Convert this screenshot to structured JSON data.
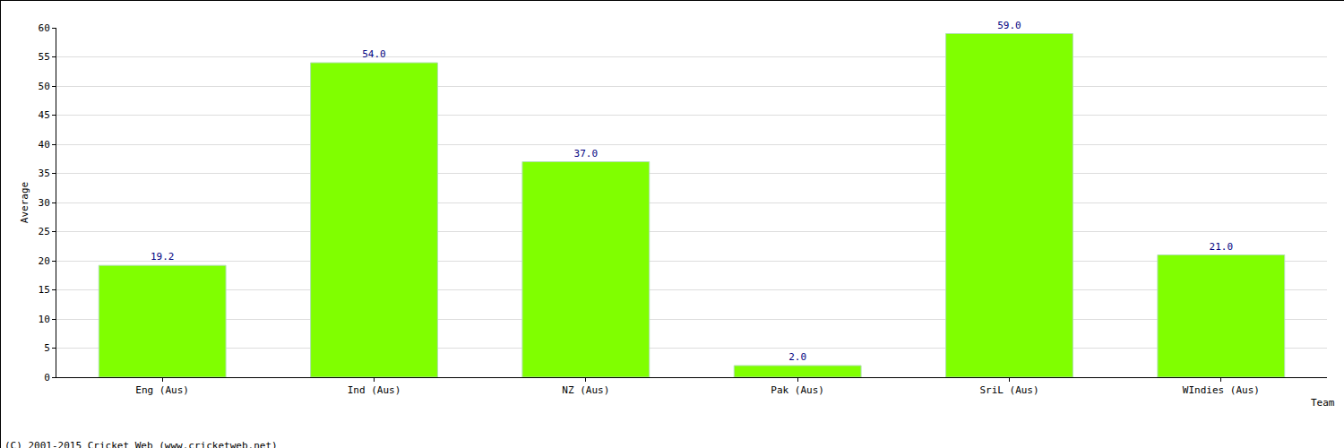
{
  "chart_data": {
    "type": "bar",
    "categories": [
      "Eng (Aus)",
      "Ind (Aus)",
      "NZ (Aus)",
      "Pak (Aus)",
      "SriL (Aus)",
      "WIndies (Aus)"
    ],
    "values": [
      19.2,
      54.0,
      37.0,
      2.0,
      59.0,
      21.0
    ],
    "value_labels": [
      "19.2",
      "54.0",
      "37.0",
      "2.0",
      "59.0",
      "21.0"
    ],
    "data_labels": true,
    "color": "#80ff00",
    "x_label": "Team",
    "y_label": "Average",
    "ylim": [
      0,
      60
    ],
    "yticks": [
      0,
      5,
      10,
      15,
      20,
      25,
      30,
      35,
      40,
      45,
      50,
      55,
      60
    ],
    "grid": true,
    "annotations": [
      "(C) 2001-2015 Cricket Web (www.cricketweb.net)"
    ]
  }
}
